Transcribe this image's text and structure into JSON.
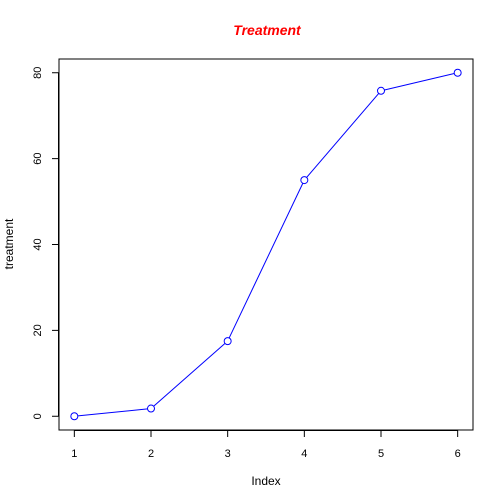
{
  "chart_data": {
    "type": "line",
    "title": "Treatment",
    "xlabel": "Index",
    "ylabel": "treatment",
    "x": [
      1,
      2,
      3,
      4,
      5,
      6
    ],
    "series": [
      {
        "values": [
          0,
          1.8,
          17.5,
          55,
          75.8,
          80
        ]
      }
    ],
    "xlim": [
      0.8,
      6.2
    ],
    "ylim": [
      -3.2,
      83.2
    ],
    "xticks": [
      "1",
      "2",
      "3",
      "4",
      "5",
      "6"
    ],
    "yticks": [
      "0",
      "20",
      "40",
      "60",
      "80"
    ],
    "grid": false,
    "markers": "open-circle",
    "colors": {
      "title": "#ff0000",
      "line": "#0000ff",
      "axis": "#000000"
    }
  }
}
